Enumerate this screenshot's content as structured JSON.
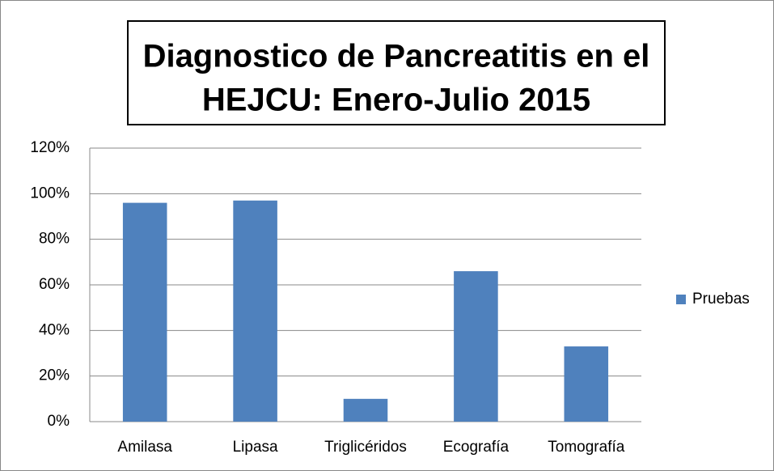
{
  "chart_data": {
    "type": "bar",
    "title": [
      "Diagnostico de Pancreatitis en el",
      "HEJCU: Enero-Julio 2015"
    ],
    "categories": [
      "Amilasa",
      "Lipasa",
      "Triglicéridos",
      "Ecografía",
      "Tomografía"
    ],
    "series": [
      {
        "name": "Pruebas",
        "color": "#4f81bd",
        "values": [
          96,
          97,
          10,
          66,
          33
        ]
      }
    ],
    "ylim": [
      0,
      120
    ],
    "yticks": [
      {
        "value": 0,
        "label": "0%"
      },
      {
        "value": 20,
        "label": "20%"
      },
      {
        "value": 40,
        "label": "40%"
      },
      {
        "value": 60,
        "label": "60%"
      },
      {
        "value": 80,
        "label": "80%"
      },
      {
        "value": 100,
        "label": "100%"
      },
      {
        "value": 120,
        "label": "120%"
      }
    ],
    "grid": true,
    "legend": "right"
  }
}
